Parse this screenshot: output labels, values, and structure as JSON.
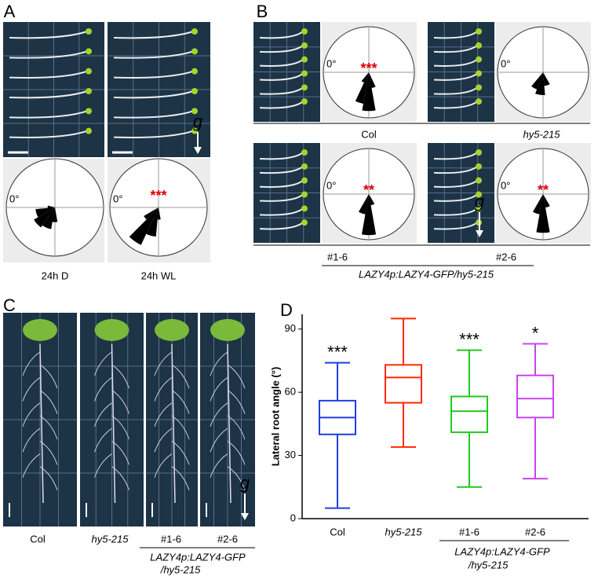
{
  "panel_a": {
    "label": "A",
    "conditions": [
      "24h D",
      "24h WL"
    ],
    "angle_labels": [
      "0°",
      "0°"
    ],
    "significance": [
      null,
      "***"
    ],
    "gravity": "g"
  },
  "panel_b": {
    "label": "B",
    "genotypes": [
      "Col",
      "hy5-215",
      "#1-6",
      "#2-6"
    ],
    "construct": "LAZY4p:LAZY4-GFP/hy5-215",
    "angle_labels": [
      "0°",
      "0°",
      "0°",
      "0°"
    ],
    "significance": [
      "***",
      null,
      "**",
      "**"
    ],
    "gravity": "g"
  },
  "panel_c": {
    "label": "C",
    "genotypes": [
      "Col",
      "hy5-215",
      "#1-6",
      "#2-6"
    ],
    "construct_lines": [
      "LAZY4p:LAZY4-GFP",
      "/hy5-215"
    ],
    "gravity": "g"
  },
  "chart_data": {
    "type": "box",
    "label": "D",
    "y_label": "Lateral root angle (°)",
    "categories": [
      "Col",
      "hy5-215",
      "#1-6",
      "#2-6"
    ],
    "construct_lines": [
      "LAZY4p:LAZY4-GFP",
      "/hy5-215"
    ],
    "colors": [
      "#1f3fe0",
      "#ff2a00",
      "#22c822",
      "#c844ee"
    ],
    "stats": {
      "min": [
        5,
        34,
        15,
        19
      ],
      "q1": [
        40,
        55,
        41,
        48
      ],
      "median": [
        48,
        67,
        51,
        57
      ],
      "q3": [
        56,
        73,
        58,
        68
      ],
      "max": [
        74,
        95,
        80,
        83
      ]
    },
    "annotations": [
      "***",
      null,
      "***",
      "*"
    ],
    "ylim": [
      0,
      97
    ],
    "yticks": [
      0,
      30,
      60,
      90
    ]
  }
}
